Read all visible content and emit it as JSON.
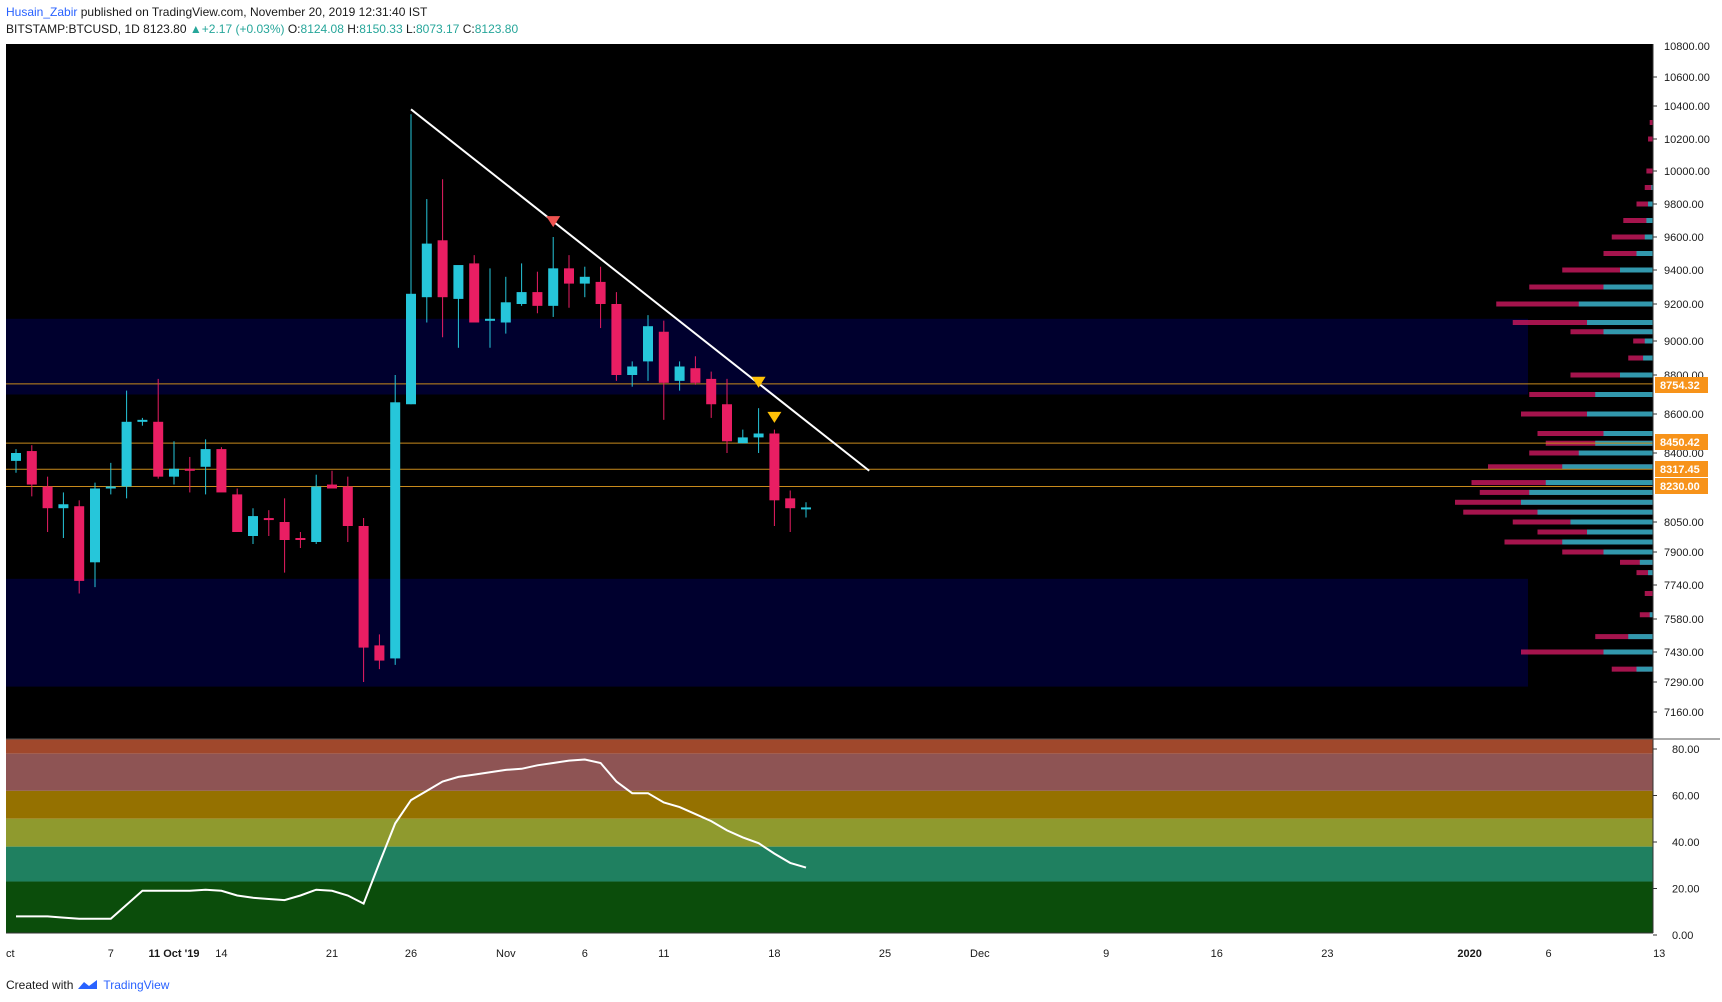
{
  "header": {
    "author": "Husain_Zabir",
    "published": "published on TradingView.com, November 20, 2019 12:31:40 IST",
    "symbol": "BITSTAMP:BTCUSD, 1D",
    "last": "8123.80",
    "change": "+2.17 (+0.03%)",
    "o_label": "O:",
    "o": "8124.08",
    "h_label": "H:",
    "h": "8150.33",
    "l_label": "L:",
    "l": "8073.17",
    "c_label": "C:",
    "c": "8123.80"
  },
  "footer": {
    "created": "Created with",
    "brand": "TradingView"
  },
  "colors": {
    "up": "#26c6da",
    "down": "#e91e63",
    "bg": "#000000",
    "zone": "#00002e",
    "level": "#c88a1c",
    "trend": "#ffffff",
    "marker_red": "#ef5350",
    "marker_yellow": "#ffc107"
  },
  "chart_data": [
    {
      "type": "candlestick",
      "title": "BITSTAMP:BTCUSD, 1D",
      "ylim": [
        7060,
        10700
      ],
      "y_ticks": [
        10600,
        10400,
        10200,
        10000,
        9800,
        9600,
        9400,
        9200,
        9000,
        8800,
        8600,
        8400,
        8050,
        7900,
        7740,
        7580,
        7430,
        7290,
        7160
      ],
      "y_tick_labels": [
        "10600.00",
        "10400.00",
        "10200.00",
        "10000.00",
        "9800.00",
        "9600.00",
        "9400.00",
        "9200.00",
        "9000.00",
        "8800.00",
        "8600.00",
        "8400.00",
        "8050.00",
        "7900.00",
        "7740.00",
        "7580.00",
        "7430.00",
        "7290.00",
        "7160.00"
      ],
      "top_partial_label": "10800.00",
      "x_labels": [
        "ct",
        "7",
        "11 Oct '19",
        "14",
        "21",
        "26",
        "Nov",
        "6",
        "11",
        "18",
        "25",
        "Dec",
        "9",
        "16",
        "23",
        "2020",
        "6",
        "13"
      ],
      "x_label_days": [
        0,
        6,
        10,
        13,
        20,
        25,
        31,
        36,
        41,
        48,
        55,
        61,
        69,
        76,
        83,
        92,
        97,
        104
      ],
      "candles": [
        [
          8360,
          8420,
          8300,
          8400
        ],
        [
          8410,
          8440,
          8180,
          8240
        ],
        [
          8230,
          8280,
          8000,
          8120
        ],
        [
          8120,
          8200,
          7970,
          8140
        ],
        [
          8130,
          8160,
          7700,
          7760
        ],
        [
          7850,
          8250,
          7730,
          8220
        ],
        [
          8230,
          8350,
          8190,
          8230
        ],
        [
          8230,
          8720,
          8170,
          8560
        ],
        [
          8570,
          8580,
          8540,
          8570
        ],
        [
          8560,
          8780,
          8270,
          8280
        ],
        [
          8280,
          8460,
          8240,
          8320
        ],
        [
          8320,
          8380,
          8200,
          8310
        ],
        [
          8330,
          8470,
          8190,
          8420
        ],
        [
          8420,
          8430,
          8210,
          8200
        ],
        [
          8190,
          8220,
          8020,
          8000
        ],
        [
          7980,
          8120,
          7940,
          8080
        ],
        [
          8070,
          8110,
          7980,
          8060
        ],
        [
          8050,
          8170,
          7800,
          7960
        ],
        [
          7970,
          8000,
          7920,
          7960
        ],
        [
          7950,
          8290,
          7940,
          8230
        ],
        [
          8240,
          8310,
          8220,
          8220
        ],
        [
          8230,
          8280,
          7950,
          8030
        ],
        [
          8030,
          8070,
          7290,
          7450
        ],
        [
          7460,
          7510,
          7350,
          7390
        ],
        [
          7400,
          8800,
          7370,
          8660
        ],
        [
          8650,
          10350,
          8650,
          9260
        ],
        [
          9240,
          9830,
          9100,
          9560
        ],
        [
          9580,
          9950,
          9020,
          9240
        ],
        [
          9230,
          9400,
          8960,
          9430
        ],
        [
          9440,
          9490,
          9100,
          9100
        ],
        [
          9120,
          9410,
          8960,
          9120
        ],
        [
          9100,
          9360,
          9040,
          9210
        ],
        [
          9200,
          9440,
          9190,
          9270
        ],
        [
          9270,
          9390,
          9150,
          9190
        ],
        [
          9190,
          9600,
          9130,
          9410
        ],
        [
          9410,
          9490,
          9180,
          9320
        ],
        [
          9320,
          9420,
          9240,
          9360
        ],
        [
          9330,
          9420,
          9070,
          9200
        ],
        [
          9200,
          9270,
          8770,
          8800
        ],
        [
          8800,
          8880,
          8740,
          8850
        ],
        [
          8880,
          9140,
          8770,
          9080
        ],
        [
          9050,
          9110,
          8570,
          8760
        ],
        [
          8770,
          8880,
          8720,
          8850
        ],
        [
          8840,
          8910,
          8750,
          8760
        ],
        [
          8780,
          8820,
          8580,
          8650
        ],
        [
          8650,
          8780,
          8400,
          8460
        ],
        [
          8450,
          8520,
          8450,
          8480
        ],
        [
          8480,
          8630,
          8400,
          8500
        ],
        [
          8500,
          8520,
          8030,
          8160
        ],
        [
          8170,
          8210,
          8000,
          8120
        ],
        [
          8124,
          8150,
          8073,
          8124
        ]
      ],
      "price_levels": [
        8754.32,
        8450.42,
        8317.45,
        8230.0
      ],
      "price_level_labels": [
        "8754.32",
        "8450.42",
        "8317.45",
        "8230.00"
      ],
      "zones": [
        [
          8700,
          9120
        ],
        [
          7270,
          7770
        ]
      ],
      "trendline": [
        [
          25,
          10380
        ],
        [
          54,
          8310
        ]
      ],
      "markers": [
        {
          "day": 34,
          "price": 9690,
          "color": "red"
        },
        {
          "day": 47,
          "price": 8760,
          "color": "yellow"
        },
        {
          "day": 48,
          "price": 8580,
          "color": "yellow"
        }
      ],
      "volume_profile": [
        [
          10300,
          0.02,
          0
        ],
        [
          10200,
          0.03,
          0
        ],
        [
          10000,
          0.04,
          0
        ],
        [
          9900,
          0.05,
          0.01
        ],
        [
          9800,
          0.1,
          0.03
        ],
        [
          9700,
          0.18,
          0.04
        ],
        [
          9600,
          0.25,
          0.05
        ],
        [
          9500,
          0.3,
          0.1
        ],
        [
          9400,
          0.55,
          0.2
        ],
        [
          9300,
          0.75,
          0.3
        ],
        [
          9200,
          0.95,
          0.45
        ],
        [
          9100,
          0.85,
          0.4
        ],
        [
          9050,
          0.5,
          0.3
        ],
        [
          9000,
          0.12,
          0.05
        ],
        [
          8900,
          0.15,
          0.06
        ],
        [
          8800,
          0.5,
          0.2
        ],
        [
          8700,
          0.75,
          0.35
        ],
        [
          8600,
          0.8,
          0.4
        ],
        [
          8500,
          0.7,
          0.3
        ],
        [
          8450,
          0.65,
          0.35
        ],
        [
          8400,
          0.75,
          0.45
        ],
        [
          8330,
          1.0,
          0.55
        ],
        [
          8250,
          1.1,
          0.65
        ],
        [
          8200,
          1.05,
          0.75
        ],
        [
          8150,
          1.2,
          0.8
        ],
        [
          8100,
          1.15,
          0.7
        ],
        [
          8050,
          0.85,
          0.5
        ],
        [
          8000,
          0.7,
          0.4
        ],
        [
          7950,
          0.9,
          0.55
        ],
        [
          7900,
          0.55,
          0.3
        ],
        [
          7850,
          0.2,
          0.08
        ],
        [
          7800,
          0.1,
          0.03
        ],
        [
          7700,
          0.05,
          0
        ],
        [
          7600,
          0.08,
          0.02
        ],
        [
          7500,
          0.35,
          0.15
        ],
        [
          7430,
          0.8,
          0.3
        ],
        [
          7350,
          0.25,
          0.1
        ]
      ]
    },
    {
      "type": "line",
      "title": "Oscillator",
      "ylim": [
        0,
        85
      ],
      "y_ticks": [
        80,
        60,
        40,
        20,
        0
      ],
      "y_tick_labels": [
        "80.00",
        "60.00",
        "40.00",
        "20.00",
        "0.00"
      ],
      "bands": [
        {
          "from": 78,
          "to": 85,
          "color": "#a0482c"
        },
        {
          "from": 62,
          "to": 78,
          "color": "#8e5454"
        },
        {
          "from": 50,
          "to": 62,
          "color": "#957100"
        },
        {
          "from": 38,
          "to": 50,
          "color": "#8f9a2e"
        },
        {
          "from": 23,
          "to": 38,
          "color": "#1f8060"
        },
        {
          "from": 0,
          "to": 23,
          "color": "#0b4d0b"
        }
      ],
      "x": [
        0,
        1,
        2,
        3,
        4,
        5,
        6,
        7,
        8,
        9,
        10,
        11,
        12,
        13,
        14,
        15,
        16,
        17,
        18,
        19,
        20,
        21,
        22,
        23,
        24,
        25,
        26,
        27,
        28,
        29,
        30,
        31,
        32,
        33,
        34,
        35,
        36,
        37,
        38,
        39,
        40,
        41,
        42,
        43,
        44,
        45,
        46,
        47,
        48,
        49,
        50
      ],
      "values": [
        8,
        8,
        8,
        7.5,
        7,
        7,
        7,
        13,
        19,
        19,
        19,
        19,
        19.5,
        19,
        17,
        16,
        15.5,
        15,
        17,
        19.5,
        19,
        17,
        13.5,
        31,
        48,
        58,
        62,
        66,
        68,
        69,
        70,
        71,
        71.5,
        73,
        74,
        75,
        75.5,
        74,
        66,
        61,
        61,
        57,
        55,
        52,
        49,
        45,
        42,
        39.5,
        35,
        31,
        29
      ]
    }
  ]
}
